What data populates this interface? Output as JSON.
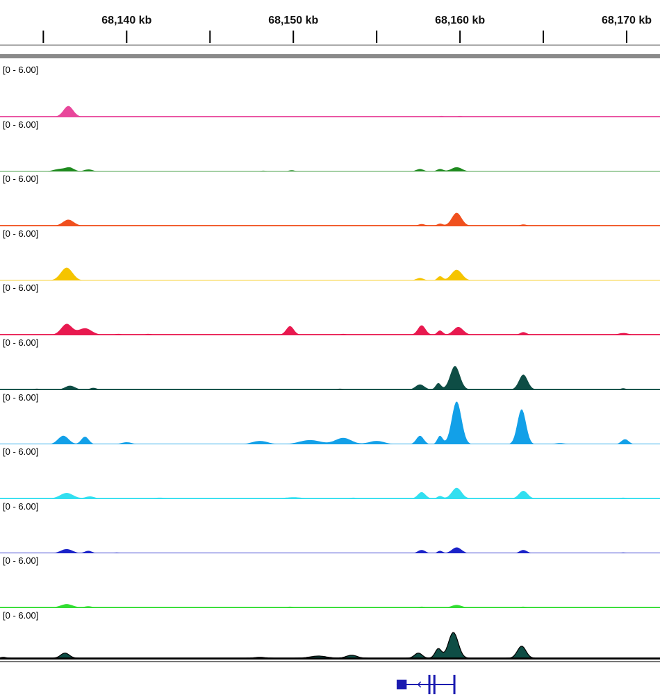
{
  "ruler": {
    "ticks": [
      {
        "pos": 68135,
        "label": ""
      },
      {
        "pos": 68140,
        "label": "68,140 kb"
      },
      {
        "pos": 68145,
        "label": ""
      },
      {
        "pos": 68150,
        "label": "68,150 kb"
      },
      {
        "pos": 68155,
        "label": ""
      },
      {
        "pos": 68160,
        "label": "68,160 kb"
      },
      {
        "pos": 68165,
        "label": ""
      },
      {
        "pos": 68170,
        "label": "68,170 kb"
      }
    ],
    "view_kb": [
      68132.4,
      68172.0
    ]
  },
  "tracks": [
    {
      "range": "[0 - 6.00]",
      "color": "#e8479b",
      "peaks": [
        [
          68136.5,
          0.25,
          0.9
        ],
        [
          68158.9,
          0.02,
          0.4
        ],
        [
          68160.0,
          0.02,
          0.4
        ]
      ]
    },
    {
      "range": "[0 - 6.00]",
      "color": "#1e8a1e",
      "peaks": [
        [
          68136.0,
          0.06,
          1.2
        ],
        [
          68136.6,
          0.08,
          0.8
        ],
        [
          68137.7,
          0.05,
          0.8
        ],
        [
          68148.2,
          0.02,
          0.6
        ],
        [
          68149.9,
          0.03,
          0.6
        ],
        [
          68157.6,
          0.06,
          0.7
        ],
        [
          68158.8,
          0.06,
          0.6
        ],
        [
          68159.8,
          0.1,
          1.0
        ]
      ]
    },
    {
      "range": "[0 - 6.00]",
      "color": "#f0501e",
      "peaks": [
        [
          68136.5,
          0.14,
          1.0
        ],
        [
          68157.7,
          0.04,
          0.6
        ],
        [
          68158.8,
          0.05,
          0.5
        ],
        [
          68159.8,
          0.3,
          0.9
        ],
        [
          68163.8,
          0.03,
          0.6
        ]
      ]
    },
    {
      "range": "[0 - 6.00]",
      "color": "#f5c400",
      "peaks": [
        [
          68136.4,
          0.3,
          1.1
        ],
        [
          68157.6,
          0.06,
          0.7
        ],
        [
          68158.8,
          0.1,
          0.5
        ],
        [
          68159.8,
          0.25,
          1.0
        ]
      ]
    },
    {
      "range": "[0 - 6.00]",
      "color": "#e8194f",
      "peaks": [
        [
          68136.4,
          0.25,
          1.0
        ],
        [
          68137.5,
          0.15,
          1.2
        ],
        [
          68139.5,
          0.02,
          0.6
        ],
        [
          68141.3,
          0.02,
          0.6
        ],
        [
          68149.8,
          0.2,
          0.7
        ],
        [
          68153.0,
          0.02,
          0.5
        ],
        [
          68157.7,
          0.22,
          0.7
        ],
        [
          68158.8,
          0.1,
          0.5
        ],
        [
          68159.9,
          0.18,
          0.9
        ],
        [
          68163.8,
          0.06,
          0.6
        ],
        [
          68169.8,
          0.04,
          0.9
        ]
      ]
    },
    {
      "range": "[0 - 6.00]",
      "color": "#0e4d45",
      "peaks": [
        [
          68134.6,
          0.02,
          0.6
        ],
        [
          68136.6,
          0.09,
          0.9
        ],
        [
          68138.0,
          0.04,
          0.6
        ],
        [
          68152.8,
          0.02,
          0.6
        ],
        [
          68157.6,
          0.12,
          0.8
        ],
        [
          68158.7,
          0.15,
          0.5
        ],
        [
          68159.7,
          0.55,
          0.9
        ],
        [
          68163.8,
          0.35,
          0.8
        ],
        [
          68169.8,
          0.03,
          0.5
        ]
      ]
    },
    {
      "range": "[0 - 6.00]",
      "color": "#12a0e8",
      "peaks": [
        [
          68136.2,
          0.2,
          1.0
        ],
        [
          68137.5,
          0.18,
          0.7
        ],
        [
          68140.0,
          0.05,
          1.0
        ],
        [
          68148.0,
          0.08,
          1.5
        ],
        [
          68151.0,
          0.1,
          2.0
        ],
        [
          68153.0,
          0.15,
          1.5
        ],
        [
          68155.0,
          0.08,
          1.5
        ],
        [
          68157.6,
          0.2,
          0.7
        ],
        [
          68158.8,
          0.2,
          0.5
        ],
        [
          68159.8,
          1.0,
          0.9
        ],
        [
          68163.7,
          0.82,
          0.8
        ],
        [
          68166.0,
          0.03,
          1.0
        ],
        [
          68169.9,
          0.12,
          0.7
        ]
      ]
    },
    {
      "range": "[0 - 6.00]",
      "color": "#33dff0",
      "peaks": [
        [
          68136.4,
          0.13,
          1.2
        ],
        [
          68137.8,
          0.05,
          0.8
        ],
        [
          68142.0,
          0.02,
          1.0
        ],
        [
          68150.0,
          0.03,
          1.5
        ],
        [
          68153.6,
          0.02,
          0.6
        ],
        [
          68157.7,
          0.15,
          0.7
        ],
        [
          68158.8,
          0.06,
          0.5
        ],
        [
          68159.8,
          0.25,
          0.9
        ],
        [
          68163.8,
          0.18,
          0.8
        ],
        [
          68169.8,
          0.02,
          0.6
        ]
      ]
    },
    {
      "range": "[0 - 6.00]",
      "color": "#1a22c8",
      "peaks": [
        [
          68136.4,
          0.1,
          1.1
        ],
        [
          68137.7,
          0.06,
          0.7
        ],
        [
          68139.4,
          0.02,
          0.5
        ],
        [
          68157.7,
          0.08,
          0.7
        ],
        [
          68158.8,
          0.06,
          0.5
        ],
        [
          68159.8,
          0.14,
          0.9
        ],
        [
          68163.8,
          0.08,
          0.7
        ],
        [
          68169.8,
          0.02,
          0.5
        ]
      ]
    },
    {
      "range": "[0 - 6.00]",
      "color": "#33dd33",
      "peaks": [
        [
          68136.4,
          0.08,
          1.1
        ],
        [
          68137.7,
          0.03,
          0.7
        ],
        [
          68149.8,
          0.02,
          0.6
        ],
        [
          68157.7,
          0.02,
          0.6
        ],
        [
          68159.8,
          0.06,
          0.9
        ],
        [
          68163.8,
          0.02,
          0.6
        ]
      ]
    },
    {
      "range": "[0 - 6.00]",
      "color": "#0e4d45",
      "outline": "#000000",
      "peaks": [
        [
          68132.6,
          0.02,
          0.5
        ],
        [
          68136.3,
          0.12,
          0.8
        ],
        [
          68148.0,
          0.02,
          1.0
        ],
        [
          68151.5,
          0.05,
          1.5
        ],
        [
          68153.5,
          0.07,
          1.0
        ],
        [
          68157.5,
          0.12,
          0.7
        ],
        [
          68158.7,
          0.22,
          0.6
        ],
        [
          68159.6,
          0.6,
          0.9
        ],
        [
          68163.7,
          0.28,
          0.8
        ]
      ]
    }
  ],
  "gene": {
    "strand": "minus",
    "color": "#1a1ab0",
    "exons_kb": [
      [
        68156.2,
        68156.8
      ],
      [
        68158.1,
        68158.2
      ],
      [
        68158.4,
        68158.5
      ],
      [
        68159.6,
        68159.7
      ]
    ],
    "span_kb": [
      68156.2,
      68159.7
    ]
  }
}
